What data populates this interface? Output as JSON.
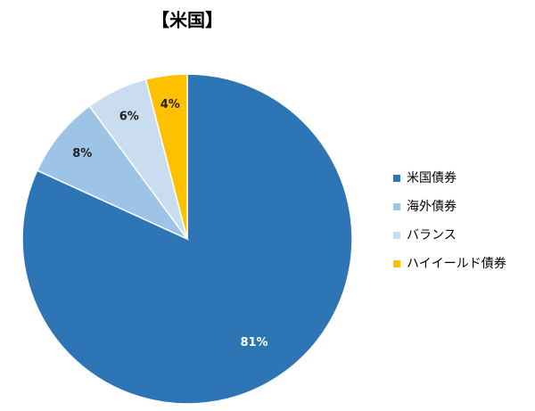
{
  "chart_data": {
    "type": "pie",
    "title": "【米国】",
    "categories": [
      "米国債券",
      "海外債券",
      "バランス",
      "ハイイールド債券"
    ],
    "values": [
      81,
      8,
      6,
      4
    ],
    "value_labels": [
      "81%",
      "8%",
      "6%",
      "4%"
    ],
    "colors": [
      "#2e75b6",
      "#9dc3e6",
      "#c9dcf0",
      "#ffc000"
    ],
    "legend": "right"
  }
}
